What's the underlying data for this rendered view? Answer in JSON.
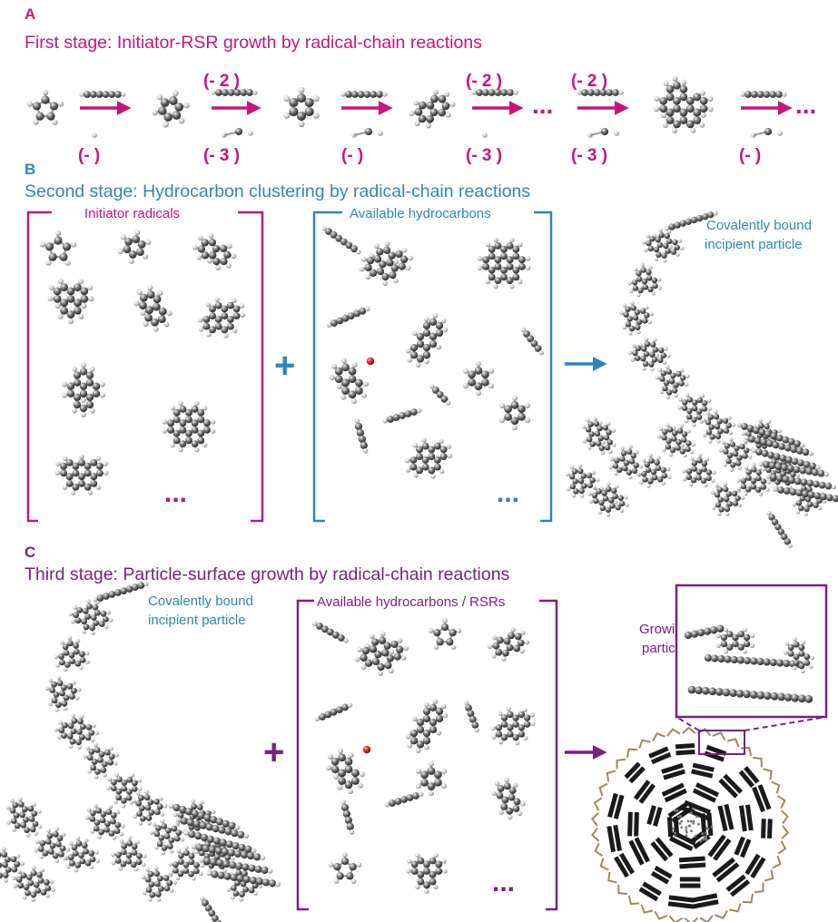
{
  "colors": {
    "magenta": "#c2177b",
    "blue": "#2f86b8",
    "purple": "#7a1f86",
    "carbon": "#555555",
    "hydrogen": "#d0d0d0",
    "oxygen": "#d8201f",
    "shell": "#a08860",
    "stack": "#1a1a1a"
  },
  "panelA": {
    "letter": "A",
    "title": "First stage: Initiator-RSR growth by radical-chain reactions",
    "top_labels": [
      "(- 2 )",
      "(- 2 )",
      "(- 2 )"
    ],
    "bottom_labels": [
      "(- )",
      "(- 3 )",
      "(- )",
      "(- 3 )",
      "(- 3 )",
      "(- )"
    ],
    "ellipsis": "..."
  },
  "panelB": {
    "letter": "B",
    "title": "Second stage: Hydrocarbon clustering by radical-chain reactions",
    "initiators_label": "Initiator radicals",
    "hydrocarbons_label": "Available hydrocarbons",
    "product_label_line1": "Covalently bound",
    "product_label_line2": "incipient particle",
    "plus": "+",
    "ellipsis": "..."
  },
  "panelC": {
    "letter": "C",
    "title": "Third stage: Particle-surface growth by radical-chain reactions",
    "particle_label_line1": "Covalently bound",
    "particle_label_line2": "incipient particle",
    "hydrocarbons_label": "Available hydrocarbons / RSRs",
    "growing_line1": "Growing",
    "growing_line2": "particle",
    "plus": "+",
    "ellipsis": "..."
  }
}
